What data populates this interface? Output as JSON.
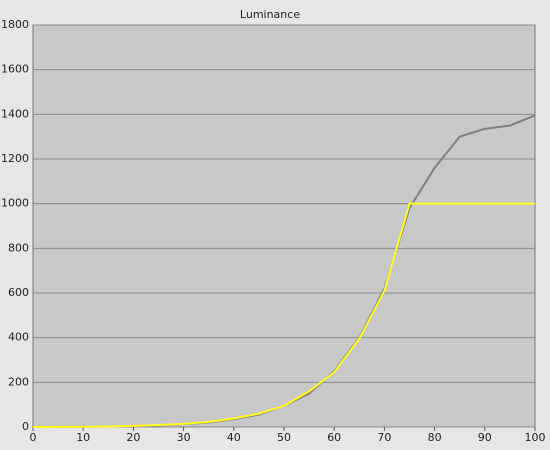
{
  "chart_data": {
    "type": "line",
    "title": "Luminance",
    "x": [
      0,
      5,
      10,
      15,
      20,
      25,
      30,
      35,
      40,
      45,
      50,
      55,
      60,
      65,
      70,
      75,
      80,
      85,
      90,
      95,
      100
    ],
    "series": [
      {
        "color": "#808080",
        "values": [
          0,
          0.3,
          1,
          2,
          4,
          7,
          13,
          20,
          35,
          55,
          95,
          150,
          250,
          400,
          620,
          980,
          1160,
          1300,
          1335,
          1350,
          1395
        ]
      },
      {
        "color": "#ffff20",
        "values": [
          0,
          0.3,
          1,
          2,
          5,
          9,
          14,
          23,
          38,
          60,
          95,
          160,
          245,
          395,
          610,
          1000,
          1000,
          1000,
          1000,
          1000,
          1000
        ]
      }
    ],
    "xlim": [
      0,
      100
    ],
    "xticks": [
      0,
      10,
      20,
      30,
      40,
      50,
      60,
      70,
      80,
      90,
      100
    ],
    "ylim": [
      0,
      1800
    ],
    "yticks": [
      0,
      200,
      400,
      600,
      800,
      1000,
      1200,
      1400,
      1600,
      1800
    ],
    "grid": true
  }
}
